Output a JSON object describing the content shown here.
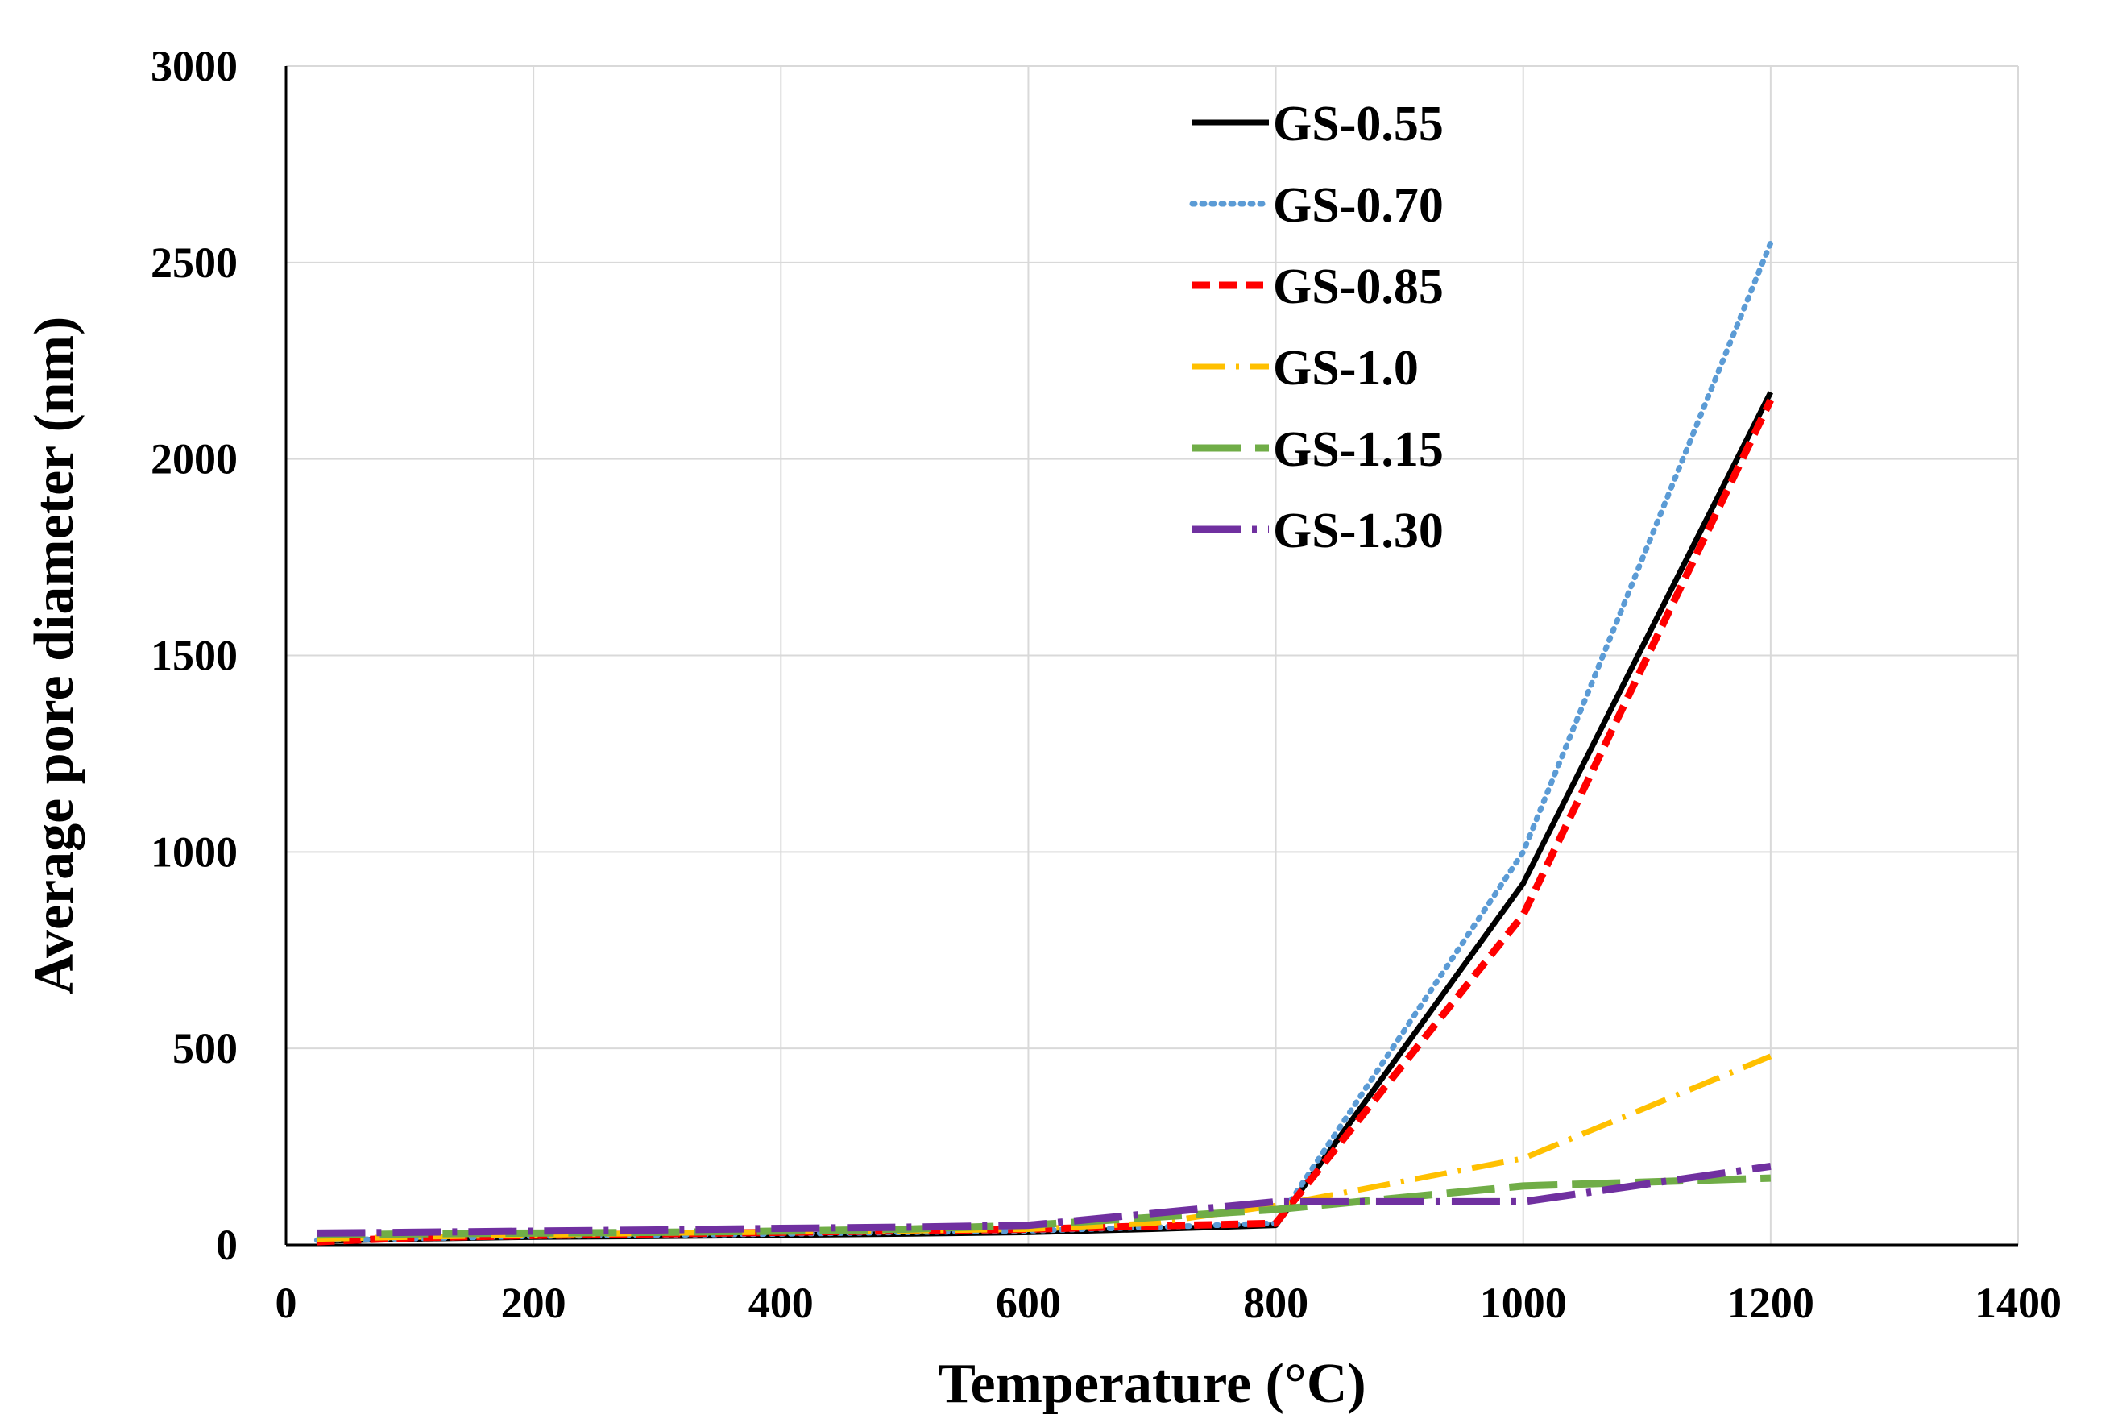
{
  "chart_data": {
    "type": "line",
    "title": "",
    "xlabel": "Temperature (°C)",
    "ylabel": "Average pore diameter (nm)",
    "xlim": [
      0,
      1400
    ],
    "ylim": [
      0,
      3000
    ],
    "xticks": [
      0,
      200,
      400,
      600,
      800,
      1000,
      1200,
      1400
    ],
    "yticks": [
      0,
      500,
      1000,
      1500,
      2000,
      2500,
      3000
    ],
    "xtick_labels": [
      "0",
      "200",
      "400",
      "600",
      "800",
      "1000",
      "1200",
      "1400"
    ],
    "ytick_labels": [
      "0",
      "500",
      "1000",
      "1500",
      "2000",
      "2500",
      "3000"
    ],
    "grid": true,
    "legend_position": "top-center",
    "series": [
      {
        "name": "GS-0.55",
        "color": "#000000",
        "dash": "solid",
        "x": [
          25,
          100,
          200,
          300,
          400,
          500,
          600,
          700,
          800,
          1000,
          1200
        ],
        "y": [
          10,
          15,
          20,
          22,
          25,
          28,
          32,
          40,
          50,
          920,
          2170
        ]
      },
      {
        "name": "GS-0.70",
        "color": "#5B9BD5",
        "dash": "dot",
        "x": [
          25,
          100,
          200,
          300,
          400,
          500,
          600,
          700,
          800,
          1000,
          1200
        ],
        "y": [
          12,
          16,
          22,
          25,
          28,
          32,
          36,
          45,
          55,
          1000,
          2550
        ]
      },
      {
        "name": "GS-0.85",
        "color": "#FF0000",
        "dash": "dash",
        "x": [
          25,
          100,
          200,
          300,
          400,
          500,
          600,
          700,
          800,
          1000,
          1200
        ],
        "y": [
          8,
          18,
          24,
          28,
          32,
          36,
          40,
          48,
          55,
          840,
          2150
        ]
      },
      {
        "name": "GS-1.0",
        "color": "#FFC000",
        "dash": "dashdot",
        "x": [
          25,
          100,
          200,
          300,
          400,
          500,
          600,
          700,
          800,
          1000,
          1200
        ],
        "y": [
          15,
          20,
          25,
          30,
          33,
          36,
          40,
          55,
          100,
          220,
          480
        ]
      },
      {
        "name": "GS-1.15",
        "color": "#70AD47",
        "dash": "longdash",
        "x": [
          25,
          100,
          200,
          300,
          400,
          500,
          600,
          700,
          800,
          1000,
          1200
        ],
        "y": [
          25,
          28,
          30,
          32,
          35,
          40,
          50,
          70,
          90,
          150,
          170
        ]
      },
      {
        "name": "GS-1.30",
        "color": "#7030A0",
        "dash": "longdashdot",
        "x": [
          25,
          100,
          200,
          300,
          400,
          500,
          600,
          700,
          800,
          1000,
          1200
        ],
        "y": [
          30,
          32,
          35,
          38,
          42,
          45,
          50,
          80,
          110,
          110,
          200
        ]
      }
    ]
  }
}
